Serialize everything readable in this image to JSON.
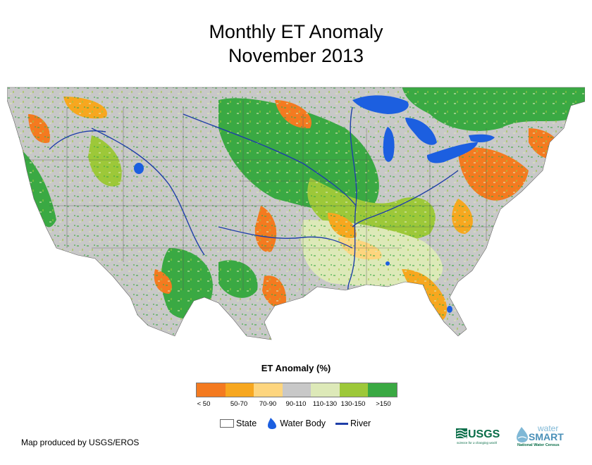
{
  "title": {
    "line1": "Monthly ET Anomaly",
    "line2": "November 2013"
  },
  "legend": {
    "title": "ET Anomaly (%)",
    "classes": [
      {
        "label": "< 50",
        "color": "#f47a20"
      },
      {
        "label": "50-70",
        "color": "#f7a71f"
      },
      {
        "label": "70-90",
        "color": "#fdd57e"
      },
      {
        "label": "90-110",
        "color": "#c8c8c8"
      },
      {
        "label": "110-130",
        "color": "#dde9b8"
      },
      {
        "label": "130-150",
        "color": "#9dc839"
      },
      {
        "label": ">150",
        "color": "#3aa943"
      }
    ],
    "key": {
      "state": "State",
      "water_body": "Water Body",
      "river": "River"
    }
  },
  "map": {
    "water_color": "#1c5fe0",
    "river_color": "#1f3fa8"
  },
  "credit": "Map produced by USGS/EROS",
  "logos": {
    "usgs": "USGS",
    "usgs_tagline": "science for a changing world",
    "watersmart_top": "water",
    "watersmart_main": "SMART",
    "watersmart_sub": "National Water Census"
  }
}
